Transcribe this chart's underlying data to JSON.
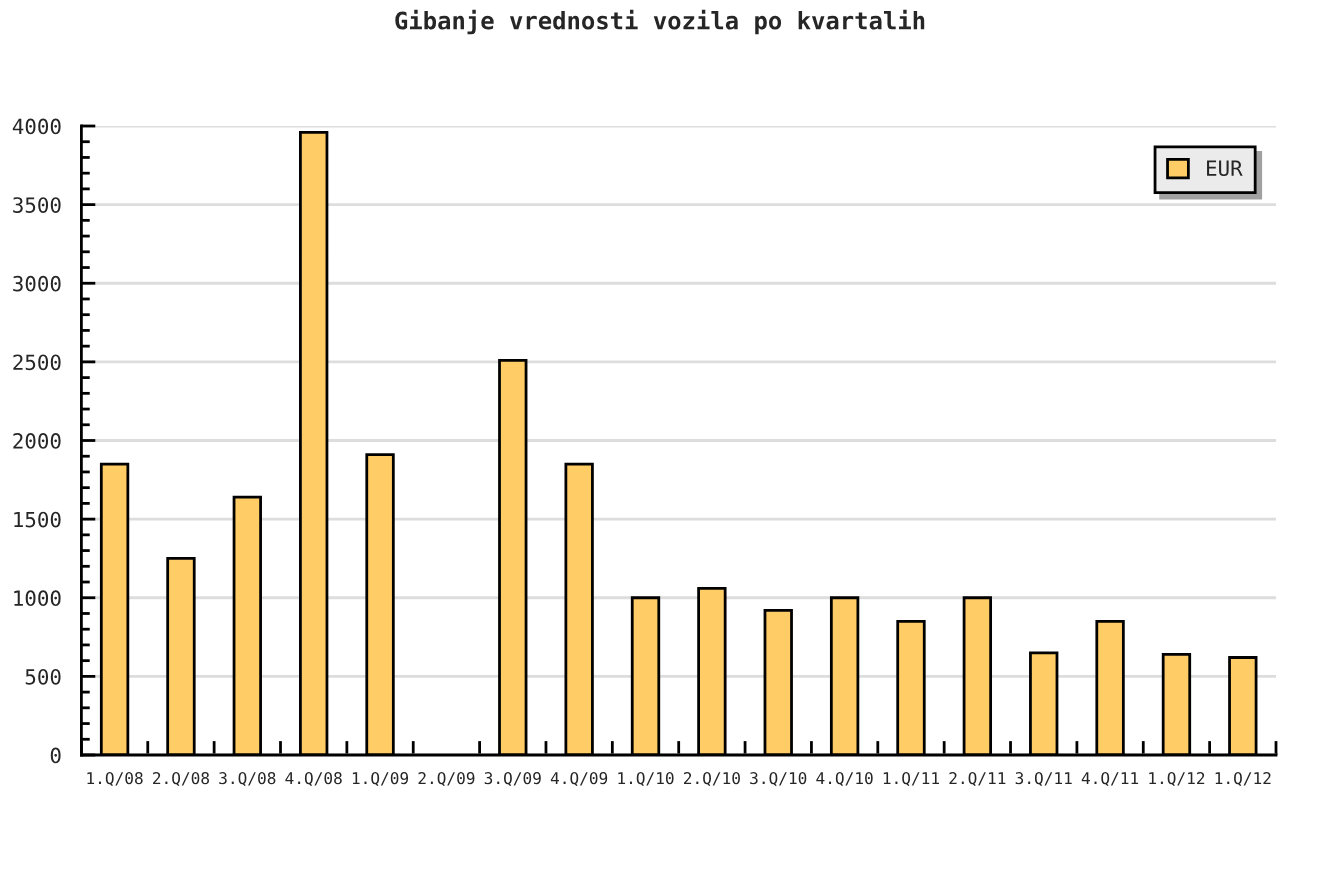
{
  "chart_data": {
    "type": "bar",
    "title": "Gibanje vrednosti vozila po kvartalih",
    "categories": [
      "1.Q/08",
      "2.Q/08",
      "3.Q/08",
      "4.Q/08",
      "1.Q/09",
      "2.Q/09",
      "3.Q/09",
      "4.Q/09",
      "1.Q/10",
      "2.Q/10",
      "3.Q/10",
      "4.Q/10",
      "1.Q/11",
      "2.Q/11",
      "3.Q/11",
      "4.Q/11",
      "1.Q/12",
      "1.Q/12"
    ],
    "series": [
      {
        "name": "EUR",
        "color": "#ffcc66",
        "values": [
          1850,
          1250,
          1640,
          3960,
          1910,
          null,
          2510,
          1850,
          1000,
          1060,
          920,
          1000,
          850,
          1000,
          650,
          850,
          640,
          620
        ]
      }
    ],
    "ylim": [
      0,
      4000
    ],
    "yticks": [
      0,
      500,
      1000,
      1500,
      2000,
      2500,
      3000,
      3500,
      4000
    ],
    "grid": "y",
    "legend": "top right"
  }
}
